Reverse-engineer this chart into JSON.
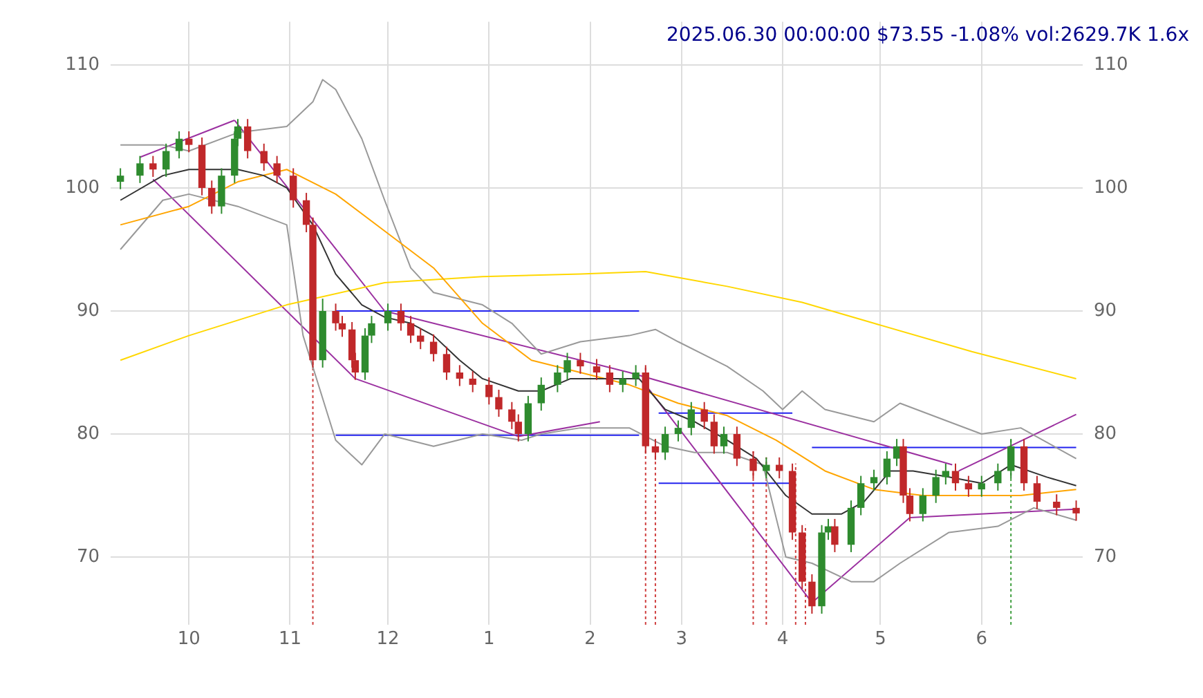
{
  "chart_data": {
    "type": "candlestick",
    "title": "2025.06.30 00:00:00 $73.55 -1.08% vol:2629.7K 1.6x",
    "x": [
      "2024-09-10",
      "2024-09-16",
      "2024-09-20",
      "2024-09-24",
      "2024-09-28",
      "2024-10-01",
      "2024-10-05",
      "2024-10-08",
      "2024-10-11",
      "2024-10-15",
      "2024-10-16",
      "2024-10-19",
      "2024-10-24",
      "2024-10-28",
      "2024-11-02",
      "2024-11-06",
      "2024-11-08",
      "2024-11-11",
      "2024-11-15",
      "2024-11-17",
      "2024-11-20",
      "2024-11-21",
      "2024-11-24",
      "2024-11-26",
      "2024-12-01",
      "2024-12-05",
      "2024-12-08",
      "2024-12-11",
      "2024-12-15",
      "2024-12-19",
      "2024-12-23",
      "2024-12-27",
      "2025-01-01",
      "2025-01-04",
      "2025-01-08",
      "2025-01-10",
      "2025-01-13",
      "2025-01-17",
      "2025-01-22",
      "2025-01-25",
      "2025-01-29",
      "2025-02-03",
      "2025-02-07",
      "2025-02-11",
      "2025-02-15",
      "2025-02-18",
      "2025-02-21",
      "2025-02-24",
      "2025-02-28",
      "2025-03-04",
      "2025-03-08",
      "2025-03-11",
      "2025-03-14",
      "2025-03-18",
      "2025-03-23",
      "2025-03-27",
      "2025-03-31",
      "2025-04-04",
      "2025-04-07",
      "2025-04-10",
      "2025-04-13",
      "2025-04-15",
      "2025-04-17",
      "2025-04-22",
      "2025-04-25",
      "2025-04-29",
      "2025-05-03",
      "2025-05-06",
      "2025-05-08",
      "2025-05-10",
      "2025-05-14",
      "2025-05-18",
      "2025-05-21",
      "2025-05-24",
      "2025-05-28",
      "2025-06-01",
      "2025-06-06",
      "2025-06-10",
      "2025-06-14",
      "2025-06-18",
      "2025-06-24",
      "2025-06-30"
    ],
    "ohlc": [
      [
        100.5,
        101.6,
        99.9,
        101
      ],
      [
        101,
        102.6,
        100.4,
        102
      ],
      [
        102,
        102.6,
        100.9,
        101.5
      ],
      [
        101.5,
        103.6,
        100.9,
        103
      ],
      [
        103,
        104.6,
        102.4,
        104
      ],
      [
        104,
        104.6,
        102.9,
        103.5
      ],
      [
        103.5,
        104.1,
        99.4,
        100
      ],
      [
        100,
        100.6,
        97.9,
        98.5
      ],
      [
        98.5,
        101.6,
        97.9,
        101
      ],
      [
        101,
        104.6,
        100.4,
        104
      ],
      [
        104,
        105.6,
        103.4,
        105
      ],
      [
        105,
        105.6,
        102.4,
        103
      ],
      [
        103,
        103.6,
        101.4,
        102
      ],
      [
        102,
        102.6,
        100.4,
        101
      ],
      [
        101,
        101.6,
        98.4,
        99
      ],
      [
        99,
        99.6,
        96.4,
        97
      ],
      [
        97,
        97.6,
        85.4,
        86
      ],
      [
        86,
        91,
        85.4,
        90
      ],
      [
        90,
        90.6,
        88.4,
        89
      ],
      [
        89,
        89.6,
        87.9,
        88.5
      ],
      [
        88.5,
        89.1,
        85.4,
        86
      ],
      [
        86,
        86.6,
        84.4,
        85
      ],
      [
        85,
        88.6,
        84.4,
        88
      ],
      [
        88,
        89.6,
        87.4,
        89
      ],
      [
        89,
        90.6,
        88.4,
        90
      ],
      [
        90,
        90.6,
        88.4,
        89
      ],
      [
        89,
        89.6,
        87.4,
        88
      ],
      [
        88,
        88.6,
        86.9,
        87.5
      ],
      [
        87.5,
        88.1,
        85.9,
        86.5
      ],
      [
        86.5,
        87.1,
        84.4,
        85
      ],
      [
        85,
        85.6,
        83.9,
        84.5
      ],
      [
        84.5,
        85.1,
        83.4,
        84
      ],
      [
        84,
        84.6,
        82.4,
        83
      ],
      [
        83,
        83.6,
        81.4,
        82
      ],
      [
        82,
        82.6,
        80.4,
        81
      ],
      [
        81,
        81.6,
        79.4,
        80
      ],
      [
        80,
        83.1,
        79.4,
        82.5
      ],
      [
        82.5,
        84.6,
        81.9,
        84
      ],
      [
        84,
        85.6,
        83.4,
        85
      ],
      [
        85,
        86.6,
        84.4,
        86
      ],
      [
        86,
        86.6,
        84.9,
        85.5
      ],
      [
        85.5,
        86.1,
        84.4,
        85
      ],
      [
        85,
        85.6,
        83.4,
        84
      ],
      [
        84,
        85.1,
        83.4,
        84.5
      ],
      [
        84.5,
        85.6,
        83.9,
        85
      ],
      [
        85,
        85.6,
        78.4,
        79
      ],
      [
        79,
        79.6,
        77.9,
        78.5
      ],
      [
        78.5,
        80.6,
        77.9,
        80
      ],
      [
        80,
        81.1,
        79.4,
        80.5
      ],
      [
        80.5,
        82.6,
        79.9,
        82
      ],
      [
        82,
        82.6,
        80.4,
        81
      ],
      [
        81,
        81.6,
        78.4,
        79
      ],
      [
        79,
        80.6,
        78.4,
        80
      ],
      [
        80,
        80.6,
        77.4,
        78
      ],
      [
        78,
        78.6,
        76.4,
        77
      ],
      [
        77,
        78.1,
        76.4,
        77.5
      ],
      [
        77.5,
        78.1,
        76.4,
        77
      ],
      [
        77,
        77.6,
        71.4,
        72
      ],
      [
        72,
        72.6,
        67.4,
        68
      ],
      [
        68,
        68.6,
        65.4,
        66
      ],
      [
        66,
        72.6,
        65.4,
        72
      ],
      [
        72,
        73.1,
        71.4,
        72.5
      ],
      [
        72.5,
        73.1,
        70.4,
        71
      ],
      [
        71,
        74.6,
        70.4,
        74
      ],
      [
        74,
        76.6,
        73.4,
        76
      ],
      [
        76,
        77.1,
        75.4,
        76.5
      ],
      [
        76.5,
        78.6,
        75.9,
        78
      ],
      [
        78,
        79.6,
        77.4,
        79
      ],
      [
        79,
        79.6,
        74.4,
        75
      ],
      [
        75,
        75.6,
        72.9,
        73.5
      ],
      [
        73.5,
        75.6,
        72.9,
        75
      ],
      [
        75,
        77.1,
        74.4,
        76.5
      ],
      [
        76.5,
        77.6,
        75.9,
        77
      ],
      [
        77,
        77.6,
        75.4,
        76
      ],
      [
        76,
        76.6,
        74.9,
        75.5
      ],
      [
        75.5,
        76.6,
        74.9,
        76
      ],
      [
        76,
        77.6,
        75.4,
        77
      ],
      [
        77,
        79.6,
        76.4,
        79
      ],
      [
        79,
        79.6,
        75.4,
        76
      ],
      [
        76,
        76.6,
        73.9,
        74.5
      ],
      [
        74.5,
        75.1,
        73.4,
        74
      ],
      [
        74,
        74.6,
        72.95,
        73.55
      ]
    ],
    "colors": [
      "#2e8b2e",
      "#2e8b2e",
      "#c0282a",
      "#2e8b2e",
      "#2e8b2e",
      "#c0282a",
      "#c0282a",
      "#c0282a",
      "#2e8b2e",
      "#2e8b2e",
      "#2e8b2e",
      "#c0282a",
      "#c0282a",
      "#c0282a",
      "#c0282a",
      "#c0282a",
      "#c0282a",
      "#2e8b2e",
      "#c0282a",
      "#c0282a",
      "#c0282a",
      "#c0282a",
      "#2e8b2e",
      "#2e8b2e",
      "#2e8b2e",
      "#c0282a",
      "#c0282a",
      "#c0282a",
      "#c0282a",
      "#c0282a",
      "#c0282a",
      "#c0282a",
      "#c0282a",
      "#c0282a",
      "#c0282a",
      "#c0282a",
      "#2e8b2e",
      "#2e8b2e",
      "#2e8b2e",
      "#2e8b2e",
      "#c0282a",
      "#c0282a",
      "#c0282a",
      "#2e8b2e",
      "#2e8b2e",
      "#c0282a",
      "#c0282a",
      "#2e8b2e",
      "#2e8b2e",
      "#2e8b2e",
      "#c0282a",
      "#c0282a",
      "#2e8b2e",
      "#c0282a",
      "#c0282a",
      "#2e8b2e",
      "#c0282a",
      "#c0282a",
      "#c0282a",
      "#c0282a",
      "#2e8b2e",
      "#2e8b2e",
      "#c0282a",
      "#2e8b2e",
      "#2e8b2e",
      "#2e8b2e",
      "#2e8b2e",
      "#2e8b2e",
      "#c0282a",
      "#c0282a",
      "#2e8b2e",
      "#2e8b2e",
      "#2e8b2e",
      "#c0282a",
      "#c0282a",
      "#2e8b2e",
      "#2e8b2e",
      "#2e8b2e",
      "#c0282a",
      "#c0282a",
      "#c0282a",
      "#c0282a"
    ],
    "series": [
      {
        "type": "line",
        "color": "#333333",
        "x": [
          "2024-09-10",
          "2024-09-23",
          "2024-10-01",
          "2024-10-16",
          "2024-10-24",
          "2024-10-31",
          "2024-11-08",
          "2024-11-15",
          "2024-11-23",
          "2024-11-30",
          "2024-12-08",
          "2024-12-15",
          "2024-12-23",
          "2024-12-30",
          "2025-01-10",
          "2025-01-17",
          "2025-01-26",
          "2025-02-05",
          "2025-02-16",
          "2025-02-24",
          "2025-03-05",
          "2025-03-15",
          "2025-03-24",
          "2025-04-02",
          "2025-04-10",
          "2025-04-19",
          "2025-04-26",
          "2025-05-04",
          "2025-05-11",
          "2025-05-22",
          "2025-06-01",
          "2025-06-10",
          "2025-06-21",
          "2025-06-30"
        ],
        "values": [
          99,
          101,
          101.5,
          101.5,
          101,
          100,
          97,
          93,
          90.5,
          89.5,
          89,
          88,
          86,
          84.5,
          83.5,
          83.5,
          84.5,
          84.5,
          84.5,
          82,
          81,
          79.5,
          78,
          75,
          73.5,
          73.5,
          74.5,
          77,
          77,
          76.5,
          76,
          77.5,
          76.5,
          75.8
        ]
      },
      {
        "type": "line",
        "color": "#ffa500",
        "x": [
          "2024-09-10",
          "2024-10-01",
          "2024-10-16",
          "2024-10-31",
          "2024-11-15",
          "2024-11-30",
          "2024-12-15",
          "2024-12-30",
          "2025-01-14",
          "2025-01-29",
          "2025-02-13",
          "2025-02-28",
          "2025-03-15",
          "2025-03-30",
          "2025-04-14",
          "2025-04-29",
          "2025-05-14",
          "2025-05-29",
          "2025-06-13",
          "2025-06-30"
        ],
        "values": [
          97,
          98.5,
          100.5,
          101.5,
          99.5,
          96.5,
          93.5,
          89,
          86,
          85,
          84,
          82.5,
          81.5,
          79.5,
          77,
          75.5,
          75,
          75,
          75,
          75.5
        ]
      },
      {
        "type": "line",
        "color": "#ffd700",
        "x": [
          "2024-09-10",
          "2024-10-01",
          "2024-10-31",
          "2024-11-30",
          "2024-12-30",
          "2025-01-29",
          "2025-02-18",
          "2025-03-15",
          "2025-04-07",
          "2025-04-29",
          "2025-05-29",
          "2025-06-30"
        ],
        "values": [
          86,
          88,
          90.5,
          92.3,
          92.8,
          93,
          93.2,
          92,
          90.7,
          89,
          86.7,
          84.5
        ]
      },
      {
        "type": "line",
        "color": "#999999",
        "x": [
          "2024-09-10",
          "2024-09-23",
          "2024-10-01",
          "2024-10-16",
          "2024-10-31",
          "2024-11-08",
          "2024-11-11",
          "2024-11-15",
          "2024-11-23",
          "2024-11-30",
          "2024-12-08",
          "2024-12-15",
          "2024-12-30",
          "2025-01-08",
          "2025-01-17",
          "2025-01-29",
          "2025-02-13",
          "2025-02-21",
          "2025-02-28",
          "2025-03-15",
          "2025-03-26",
          "2025-04-01",
          "2025-04-07",
          "2025-04-14",
          "2025-04-29",
          "2025-05-07",
          "2025-05-22",
          "2025-06-01",
          "2025-06-13",
          "2025-06-30"
        ],
        "values": [
          103.5,
          103.5,
          103,
          104.5,
          105,
          107,
          108.8,
          108,
          104,
          99,
          93.5,
          91.5,
          90.5,
          89,
          86.5,
          87.5,
          88,
          88.5,
          87.5,
          85.5,
          83.5,
          82,
          83.5,
          82,
          81,
          82.5,
          81,
          80,
          80.5,
          78
        ]
      },
      {
        "type": "line",
        "color": "#999999",
        "x": [
          "2024-09-10",
          "2024-09-23",
          "2024-10-01",
          "2024-10-16",
          "2024-10-31",
          "2024-11-05",
          "2024-11-15",
          "2024-11-23",
          "2024-11-30",
          "2024-12-15",
          "2024-12-30",
          "2025-01-11",
          "2025-01-17",
          "2025-01-29",
          "2025-02-13",
          "2025-02-24",
          "2025-03-05",
          "2025-03-15",
          "2025-03-26",
          "2025-04-02",
          "2025-04-10",
          "2025-04-22",
          "2025-04-29",
          "2025-05-07",
          "2025-05-22",
          "2025-06-06",
          "2025-06-17",
          "2025-06-30"
        ],
        "values": [
          95,
          99,
          99.5,
          98.5,
          97,
          88,
          79.5,
          77.5,
          80,
          79,
          80,
          79.5,
          80,
          80.5,
          80.5,
          79,
          78.5,
          78.5,
          77.5,
          70,
          69.5,
          68,
          68,
          69.5,
          72,
          72.5,
          74,
          73
        ]
      },
      {
        "type": "line",
        "color": "#9b30a0",
        "x": [
          "2024-09-16",
          "2024-10-15"
        ],
        "values": [
          102.5,
          105.5
        ]
      },
      {
        "type": "line",
        "color": "#9b30a0",
        "x": [
          "2024-10-15",
          "2024-11-30",
          "2025-02-13",
          "2025-05-23"
        ],
        "values": [
          105.5,
          90,
          85,
          77.5
        ]
      },
      {
        "type": "line",
        "color": "#9b30a0",
        "x": [
          "2024-09-20",
          "2024-11-21",
          "2025-01-10",
          "2025-02-04"
        ],
        "values": [
          100.7,
          84.5,
          79.8,
          81
        ]
      },
      {
        "type": "line",
        "color": "#9b30a0",
        "x": [
          "2025-02-18",
          "2025-04-10",
          "2025-05-10",
          "2025-06-30"
        ],
        "values": [
          84,
          66.3,
          73.2,
          73.9
        ]
      },
      {
        "type": "line",
        "color": "#9b30a0",
        "x": [
          "2025-05-25",
          "2025-06-30"
        ],
        "values": [
          77,
          81.6
        ]
      },
      {
        "type": "line",
        "color": "#2222ee",
        "x": [
          "2024-11-15",
          "2025-02-16"
        ],
        "values": [
          90,
          90
        ]
      },
      {
        "type": "line",
        "color": "#2222ee",
        "x": [
          "2024-11-15",
          "2025-02-16"
        ],
        "values": [
          79.9,
          79.9
        ]
      },
      {
        "type": "line",
        "color": "#2222ee",
        "x": [
          "2025-02-22",
          "2025-04-04"
        ],
        "values": [
          81.7,
          81.7
        ]
      },
      {
        "type": "line",
        "color": "#2222ee",
        "x": [
          "2025-02-22",
          "2025-04-04"
        ],
        "values": [
          76,
          76
        ]
      },
      {
        "type": "line",
        "color": "#2222ee",
        "x": [
          "2025-04-10",
          "2025-06-30"
        ],
        "values": [
          78.9,
          78.9
        ]
      }
    ],
    "ref_lines": [
      {
        "axis": "x",
        "value": "2024-11-08",
        "color": "#d04040",
        "line_style": "dotted"
      },
      {
        "axis": "x",
        "value": "2025-02-18",
        "color": "#d04040",
        "line_style": "dotted"
      },
      {
        "axis": "x",
        "value": "2025-02-21",
        "color": "#d04040",
        "line_style": "dotted"
      },
      {
        "axis": "x",
        "value": "2025-03-23",
        "color": "#d04040",
        "line_style": "dotted"
      },
      {
        "axis": "x",
        "value": "2025-03-27",
        "color": "#d04040",
        "line_style": "dotted"
      },
      {
        "axis": "x",
        "value": "2025-04-05",
        "color": "#d04040",
        "line_style": "dotted"
      },
      {
        "axis": "x",
        "value": "2025-04-08",
        "color": "#d04040",
        "line_style": "dotted"
      },
      {
        "axis": "x",
        "value": "2025-06-10",
        "color": "#40a040",
        "line_style": "dotted"
      }
    ],
    "xlim": [
      "2024-09-07",
      "2025-07-02"
    ],
    "xticks": [
      {
        "value": "2024-10-01",
        "label": "10"
      },
      {
        "value": "2024-11-01",
        "label": "11"
      },
      {
        "value": "2024-12-01",
        "label": "12"
      },
      {
        "value": "2025-01-01",
        "label": "1"
      },
      {
        "value": "2025-02-01",
        "label": "2"
      },
      {
        "value": "2025-03-01",
        "label": "3"
      },
      {
        "value": "2025-04-01",
        "label": "4"
      },
      {
        "value": "2025-05-01",
        "label": "5"
      },
      {
        "value": "2025-06-01",
        "label": "6"
      }
    ],
    "ylim": [
      64.5,
      113.5
    ],
    "yticks": [
      70,
      80,
      90,
      100,
      110
    ],
    "y2lim": [
      64.5,
      113.5
    ],
    "y2ticks": [
      70,
      80,
      90,
      100,
      110
    ],
    "grid": true,
    "legend": false
  }
}
